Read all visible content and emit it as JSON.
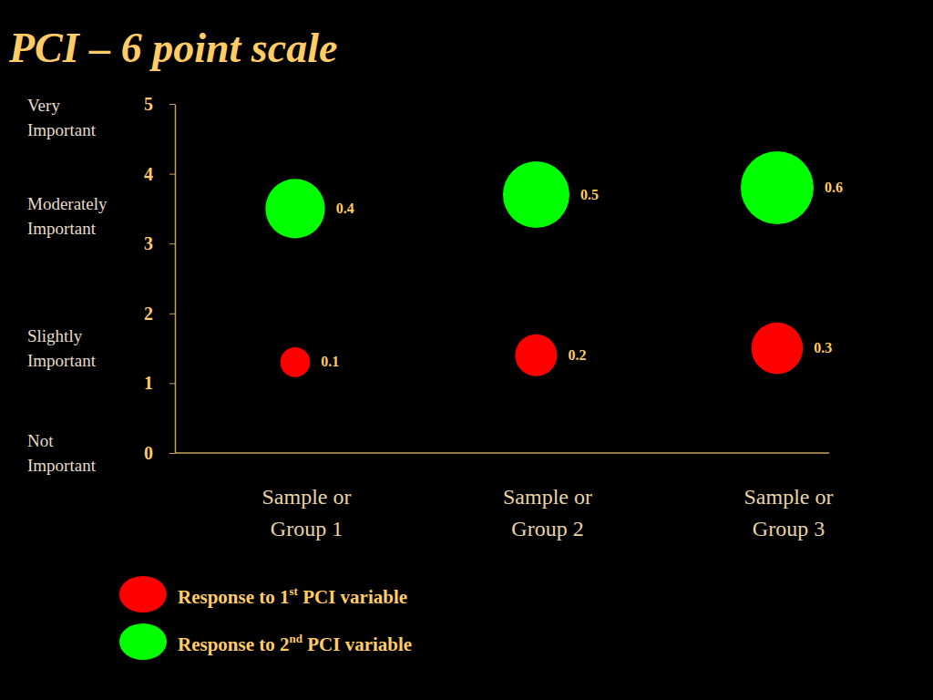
{
  "chart_data": {
    "type": "bubble",
    "title": "PCI – 6 point scale",
    "categories": [
      "Sample or Group 1",
      "Sample or Group 2",
      "Sample or Group 3"
    ],
    "series": [
      {
        "name": "Response to 1st PCI variable",
        "color": "#ff0000",
        "values": [
          1.3,
          1.4,
          1.5
        ],
        "sizes": [
          0.1,
          0.2,
          0.3
        ]
      },
      {
        "name": "Response to 2nd PCI variable",
        "color": "#00ff00",
        "values": [
          3.5,
          3.7,
          3.8
        ],
        "sizes": [
          0.4,
          0.5,
          0.6
        ]
      }
    ],
    "ylim": [
      0,
      5
    ],
    "yticks": [
      0,
      1,
      2,
      3,
      4,
      5
    ],
    "y_level_labels": [
      {
        "value": 4.8,
        "label": "Very Important"
      },
      {
        "value": 3.4,
        "label": "Moderately Important"
      },
      {
        "value": 1.5,
        "label": "Slightly Important"
      },
      {
        "value": 0,
        "label": "Not Important"
      }
    ],
    "data_labels": true,
    "legend": "bottom-left",
    "grid": false
  }
}
